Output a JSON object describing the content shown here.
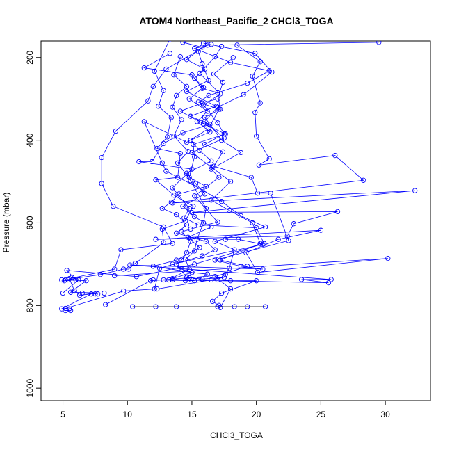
{
  "chart_data": {
    "type": "scatter",
    "title": "ATOM4 Northeast_Pacific_2 CHCl3_TOGA",
    "xlabel": "CHCl3_TOGA",
    "ylabel": "Pressure (mbar)",
    "xlim": [
      3.3,
      33.5
    ],
    "ylim": [
      1030,
      160
    ],
    "y_reversed": true,
    "x_ticks": [
      5,
      10,
      15,
      20,
      25,
      30
    ],
    "y_ticks": [
      200,
      400,
      600,
      800,
      1000
    ],
    "grid": false,
    "legend": "none",
    "colors": {
      "series": "#0000ff",
      "flat_segment": "#000000"
    },
    "series": [
      {
        "points": [
          [
            14.3,
            163
          ],
          [
            15.8,
            175
          ],
          [
            14.6,
            205
          ],
          [
            16.0,
            228
          ],
          [
            15.2,
            250
          ],
          [
            15.9,
            272
          ],
          [
            14.8,
            300
          ],
          [
            16.2,
            330
          ],
          [
            15.4,
            355
          ],
          [
            16.4,
            380
          ],
          [
            14.9,
            400
          ],
          [
            15.6,
            425
          ],
          [
            16.5,
            450
          ],
          [
            14.6,
            480
          ],
          [
            15.3,
            505
          ],
          [
            16.0,
            530
          ],
          [
            14.3,
            560
          ],
          [
            15.2,
            585
          ],
          [
            16.5,
            610
          ],
          [
            14.7,
            635
          ],
          [
            15.6,
            660
          ],
          [
            13.8,
            690
          ],
          [
            12.0,
            705
          ],
          [
            15.0,
            720
          ],
          [
            13.5,
            735
          ],
          [
            14.5,
            740
          ]
        ]
      },
      {
        "points": [
          [
            15.9,
            165
          ],
          [
            19.9,
            190
          ],
          [
            21.2,
            235
          ],
          [
            19.0,
            290
          ],
          [
            17.0,
            320
          ],
          [
            16.0,
            355
          ],
          [
            17.5,
            395
          ],
          [
            15.0,
            430
          ],
          [
            16.5,
            465
          ],
          [
            18.0,
            500
          ],
          [
            16.5,
            545
          ],
          [
            17.9,
            570
          ],
          [
            19.7,
            600
          ],
          [
            20.3,
            650
          ],
          [
            17.2,
            690
          ],
          [
            19.3,
            705
          ],
          [
            16.8,
            730
          ],
          [
            18.0,
            760
          ],
          [
            17.2,
            805
          ]
        ]
      },
      {
        "points": [
          [
            29.5,
            163
          ],
          [
            16.2,
            170
          ],
          [
            13.0,
            228
          ],
          [
            12.0,
            270
          ],
          [
            11.6,
            305
          ],
          [
            9.1,
            378
          ],
          [
            8.0,
            442
          ],
          [
            8.0,
            505
          ],
          [
            8.9,
            560
          ],
          [
            12.8,
            610
          ],
          [
            13.5,
            650
          ],
          [
            9.5,
            665
          ],
          [
            9.0,
            712
          ],
          [
            5.5,
            735
          ],
          [
            5.9,
            765
          ],
          [
            6.3,
            775
          ],
          [
            7.2,
            772
          ],
          [
            4.9,
            808
          ],
          [
            5.2,
            812
          ],
          [
            5.6,
            812
          ]
        ]
      },
      {
        "points": [
          [
            18.5,
            170
          ],
          [
            20.3,
            210
          ],
          [
            19.7,
            245
          ],
          [
            20.3,
            310
          ],
          [
            19.9,
            333
          ],
          [
            20.0,
            390
          ],
          [
            21.0,
            445
          ],
          [
            20.2,
            460
          ],
          [
            26.1,
            437
          ],
          [
            28.3,
            497
          ],
          [
            13.5,
            552
          ],
          [
            32.3,
            522
          ],
          [
            15.0,
            575
          ],
          [
            26.3,
            573
          ],
          [
            22.9,
            602
          ],
          [
            22.4,
            632
          ],
          [
            12.2,
            640
          ],
          [
            25.0,
            618
          ],
          [
            21.7,
            640
          ],
          [
            19.2,
            672
          ],
          [
            20.1,
            720
          ],
          [
            30.2,
            686
          ],
          [
            9.0,
            728
          ]
        ]
      },
      {
        "points": [
          [
            17.3,
            173
          ],
          [
            16.8,
            198
          ],
          [
            15.6,
            238
          ],
          [
            17.2,
            288
          ],
          [
            15.9,
            315
          ],
          [
            17.0,
            358
          ],
          [
            17.5,
            385
          ],
          [
            16.0,
            410
          ],
          [
            17.4,
            428
          ],
          [
            16.7,
            463
          ],
          [
            19.6,
            490
          ],
          [
            20.1,
            528
          ],
          [
            21.1,
            528
          ],
          [
            22.5,
            643
          ],
          [
            16.8,
            690
          ],
          [
            18.8,
            705
          ],
          [
            20.5,
            712
          ],
          [
            10.2,
            702
          ],
          [
            25.8,
            737
          ],
          [
            23.5,
            737
          ],
          [
            25.6,
            745
          ],
          [
            13.5,
            738
          ],
          [
            12.0,
            738
          ],
          [
            15.2,
            740
          ]
        ]
      },
      {
        "points": [
          [
            13.3,
            190
          ],
          [
            11.3,
            225
          ],
          [
            15.0,
            242
          ],
          [
            15.8,
            275
          ],
          [
            17.0,
            285
          ],
          [
            17.2,
            325
          ],
          [
            16.0,
            345
          ],
          [
            17.3,
            400
          ],
          [
            18.8,
            430
          ],
          [
            16.5,
            470
          ],
          [
            17.1,
            490
          ],
          [
            15.2,
            535
          ],
          [
            17.0,
            598
          ],
          [
            14.9,
            615
          ],
          [
            14.2,
            622
          ],
          [
            14.9,
            645
          ],
          [
            14.6,
            672
          ],
          [
            14.2,
            690
          ],
          [
            13.8,
            700
          ],
          [
            14.6,
            732
          ],
          [
            15.8,
            736
          ],
          [
            17.5,
            732
          ],
          [
            16.5,
            738
          ],
          [
            12.3,
            760
          ]
        ]
      },
      {
        "points": [
          [
            14.1,
            198
          ],
          [
            13.6,
            242
          ],
          [
            14.6,
            270
          ],
          [
            13.8,
            292
          ],
          [
            13.5,
            320
          ],
          [
            14.2,
            350
          ],
          [
            13.6,
            390
          ],
          [
            14.7,
            427
          ],
          [
            13.9,
            455
          ],
          [
            14.9,
            498
          ],
          [
            16.1,
            565
          ],
          [
            15.9,
            600
          ],
          [
            15.4,
            640
          ],
          [
            15.2,
            668
          ],
          [
            14.5,
            688
          ],
          [
            14.8,
            712
          ],
          [
            13.2,
            738
          ],
          [
            12.8,
            738
          ]
        ]
      },
      {
        "points": [
          [
            13.3,
            155
          ],
          [
            12.1,
            233
          ],
          [
            12.8,
            280
          ],
          [
            12.4,
            318
          ],
          [
            13.4,
            345
          ],
          [
            13.1,
            392
          ],
          [
            12.3,
            420
          ],
          [
            14.1,
            432
          ],
          [
            13.9,
            490
          ],
          [
            12.2,
            496
          ],
          [
            13.6,
            533
          ],
          [
            15.1,
            560
          ],
          [
            14.5,
            595
          ],
          [
            12.7,
            615
          ],
          [
            12.8,
            648
          ],
          [
            10.6,
            698
          ],
          [
            10.1,
            712
          ],
          [
            9.7,
            712
          ],
          [
            7.9,
            725
          ],
          [
            5.2,
            738
          ],
          [
            6.8,
            740
          ],
          [
            5.6,
            768
          ],
          [
            8.2,
            770
          ]
        ]
      },
      {
        "points": [
          [
            16.5,
            168
          ],
          [
            15.2,
            178
          ],
          [
            18.0,
            212
          ],
          [
            21.0,
            232
          ],
          [
            19.3,
            262
          ],
          [
            16.3,
            292
          ],
          [
            15.5,
            308
          ],
          [
            17.1,
            325
          ],
          [
            16.3,
            372
          ],
          [
            14.6,
            405
          ],
          [
            11.3,
            355
          ],
          [
            12.7,
            455
          ],
          [
            13.0,
            475
          ],
          [
            15.8,
            520
          ],
          [
            17.3,
            548
          ],
          [
            18.8,
            583
          ],
          [
            20.7,
            610
          ],
          [
            16.8,
            645
          ],
          [
            18.3,
            665
          ],
          [
            17.9,
            710
          ],
          [
            17.6,
            725
          ],
          [
            14.8,
            733
          ],
          [
            11.8,
            740
          ],
          [
            8.3,
            798
          ]
        ]
      },
      {
        "points": [
          [
            15.5,
            185
          ],
          [
            15.8,
            215
          ],
          [
            16.3,
            255
          ],
          [
            14.6,
            282
          ],
          [
            16.9,
            318
          ],
          [
            14.9,
            342
          ],
          [
            16.4,
            362
          ],
          [
            14.3,
            382
          ],
          [
            12.8,
            408
          ],
          [
            11.9,
            452
          ],
          [
            10.9,
            452
          ],
          [
            15.0,
            470
          ],
          [
            13.5,
            515
          ],
          [
            14.8,
            565
          ],
          [
            14.4,
            588
          ],
          [
            15.5,
            605
          ],
          [
            20.0,
            612
          ],
          [
            20.6,
            650
          ],
          [
            15.2,
            700
          ],
          [
            10.7,
            730
          ],
          [
            5.3,
            715
          ],
          [
            6.0,
            738
          ],
          [
            5.1,
            740
          ],
          [
            4.9,
            738
          ],
          [
            5.4,
            738
          ],
          [
            5.7,
            732
          ],
          [
            6.2,
            738
          ],
          [
            5.0,
            770
          ],
          [
            6.5,
            770
          ],
          [
            7.5,
            772
          ],
          [
            7.7,
            772
          ]
        ]
      },
      {
        "points": [
          [
            18.2,
            200
          ],
          [
            16.7,
            240
          ],
          [
            17.4,
            260
          ],
          [
            17.0,
            300
          ],
          [
            15.8,
            310
          ],
          [
            14.1,
            330
          ],
          [
            15.9,
            360
          ],
          [
            17.6,
            385
          ],
          [
            15.1,
            410
          ],
          [
            15.2,
            440
          ],
          [
            14.8,
            490
          ],
          [
            16.1,
            512
          ],
          [
            14.0,
            530
          ],
          [
            13.4,
            550
          ],
          [
            12.7,
            565
          ],
          [
            13.8,
            580
          ],
          [
            14.6,
            605
          ],
          [
            13.8,
            625
          ],
          [
            16.1,
            645
          ],
          [
            16.8,
            665
          ],
          [
            15.8,
            680
          ],
          [
            12.5,
            710
          ],
          [
            12.1,
            760
          ],
          [
            9.7,
            765
          ],
          [
            5.2,
            807
          ],
          [
            5.5,
            808
          ]
        ]
      },
      {
        "points": [
          [
            17.6,
            640
          ],
          [
            18.6,
            640
          ],
          [
            20.5,
            652
          ],
          [
            13.5,
            700
          ],
          [
            14.2,
            712
          ],
          [
            15.0,
            720
          ],
          [
            16.2,
            724
          ],
          [
            15.5,
            738
          ],
          [
            14.7,
            738
          ],
          [
            17.0,
            738
          ],
          [
            18.0,
            740
          ],
          [
            20.0,
            740
          ],
          [
            17.3,
            770
          ],
          [
            16.6,
            790
          ],
          [
            17.1,
            800
          ]
        ]
      }
    ],
    "flat_segment": {
      "x_start": 10.4,
      "x_end": 20.7,
      "y": 803
    },
    "flat_points": [
      [
        10.4,
        803
      ],
      [
        12.2,
        803
      ],
      [
        13.8,
        803
      ],
      [
        17.0,
        803
      ],
      [
        18.3,
        803
      ],
      [
        19.3,
        803
      ],
      [
        20.7,
        803
      ]
    ]
  }
}
